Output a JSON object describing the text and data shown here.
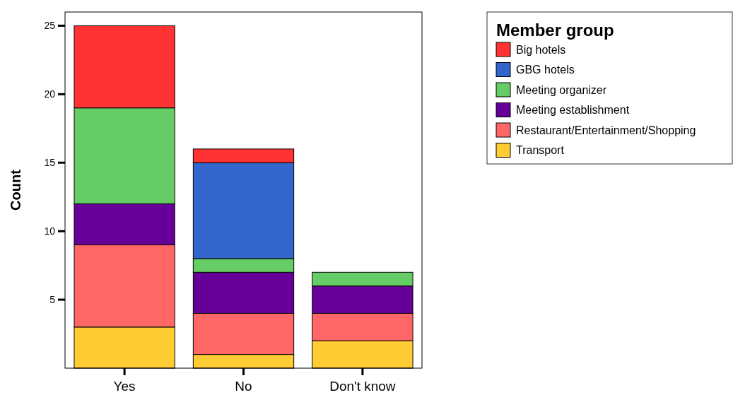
{
  "chart_data": {
    "type": "bar",
    "stacked": true,
    "ylabel": "Count",
    "legend_title": "Member group",
    "legend": "top right",
    "categories": [
      "Yes",
      "No",
      "Don't know"
    ],
    "series": [
      {
        "name": "Transport",
        "color": "#ffcc33",
        "values": [
          3,
          1,
          2
        ]
      },
      {
        "name": "Restaurant/Entertainment/Shopping",
        "color": "#ff6666",
        "values": [
          6,
          3,
          2
        ]
      },
      {
        "name": "Meeting establishment",
        "color": "#660099",
        "values": [
          3,
          3,
          2
        ]
      },
      {
        "name": "Meeting organizer",
        "color": "#66cc66",
        "values": [
          7,
          1,
          1
        ]
      },
      {
        "name": "GBG hotels",
        "color": "#3366cc",
        "values": [
          0,
          7,
          0
        ]
      },
      {
        "name": "Big hotels",
        "color": "#ff3333",
        "values": [
          6,
          1,
          0
        ]
      }
    ],
    "ylim": [
      0,
      26
    ],
    "yticks": [
      5,
      10,
      15,
      20,
      25
    ],
    "grid": false
  }
}
